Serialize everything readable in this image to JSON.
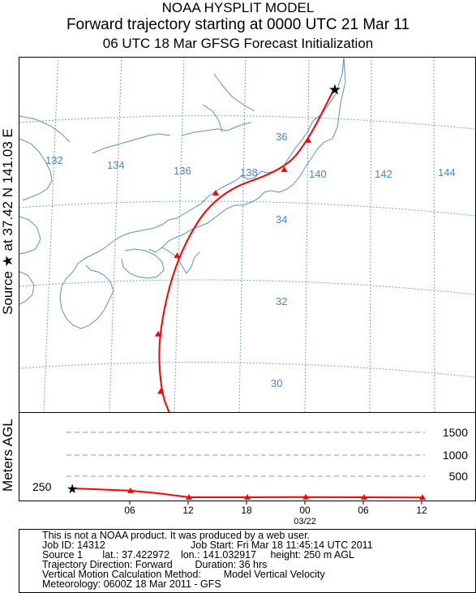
{
  "header": {
    "model": "NOAA HYSPLIT MODEL",
    "title": "Forward trajectory starting at 0000 UTC 21 Mar 11",
    "subtitle": "06 UTC 18 Mar    GFSG  Forecast Initialization"
  },
  "side_label": "Source ★ at   37.42 N  141.03 E",
  "height_axis_label": "Meters AGL",
  "map": {
    "longitude_labels": [
      "132",
      "134",
      "136",
      "138",
      "140",
      "142",
      "144"
    ],
    "latitude_labels": [
      "36",
      "34",
      "32",
      "30"
    ],
    "source_marker": "★",
    "colors": {
      "grid": "#6fa3d8",
      "coast": "#5b8fc9",
      "trajectory": "#ff0000",
      "labels": "#4a86c6"
    }
  },
  "height_panel": {
    "levels": [
      "1500",
      "1000",
      "500"
    ],
    "start_label": "250",
    "time_ticks": [
      "06",
      "12",
      "18",
      "00",
      "06",
      "12"
    ],
    "date_label": "03/22"
  },
  "footer": {
    "line1": "This is not a NOAA product. It was produced by a web user.",
    "job_id": "Job ID: 14312",
    "job_start": "Job Start: Fri Mar 18 11:45:14 UTC 2011",
    "source": "Source 1       lat.: 37.422972    lon.: 141.032917     height: 250 m AGL",
    "direction": "Trajectory Direction: Forward        Duration: 36 hrs",
    "vertical": "Vertical Motion Calculation Method:        Model Vertical Velocity",
    "meteorology": "Meteorology: 0600Z 18 Mar 2011 - GFS"
  },
  "chart_data": {
    "type": "trajectory",
    "source": {
      "lat": 37.42,
      "lon": 141.03,
      "height_m_agl": 250
    },
    "start": "0000 UTC 21 Mar 11",
    "duration_hrs": 36,
    "points": [
      {
        "hour": 0,
        "lat": 37.4,
        "lon": 141.0,
        "height": 250
      },
      {
        "hour": 6,
        "lat": 36.0,
        "lon": 140.1,
        "height": 190
      },
      {
        "hour": 9,
        "lat": 35.2,
        "lon": 139.3,
        "height": 120
      },
      {
        "hour": 12,
        "lat": 34.6,
        "lon": 137.1,
        "height": 20
      },
      {
        "hour": 18,
        "lat": 33.2,
        "lon": 135.8,
        "height": 20
      },
      {
        "hour": 24,
        "lat": 31.4,
        "lon": 135.1,
        "height": 25
      },
      {
        "hour": 30,
        "lat": 30.0,
        "lon": 135.1,
        "height": 20
      },
      {
        "hour": 36,
        "lat": 29.3,
        "lon": 135.4,
        "height": 15
      }
    ]
  }
}
